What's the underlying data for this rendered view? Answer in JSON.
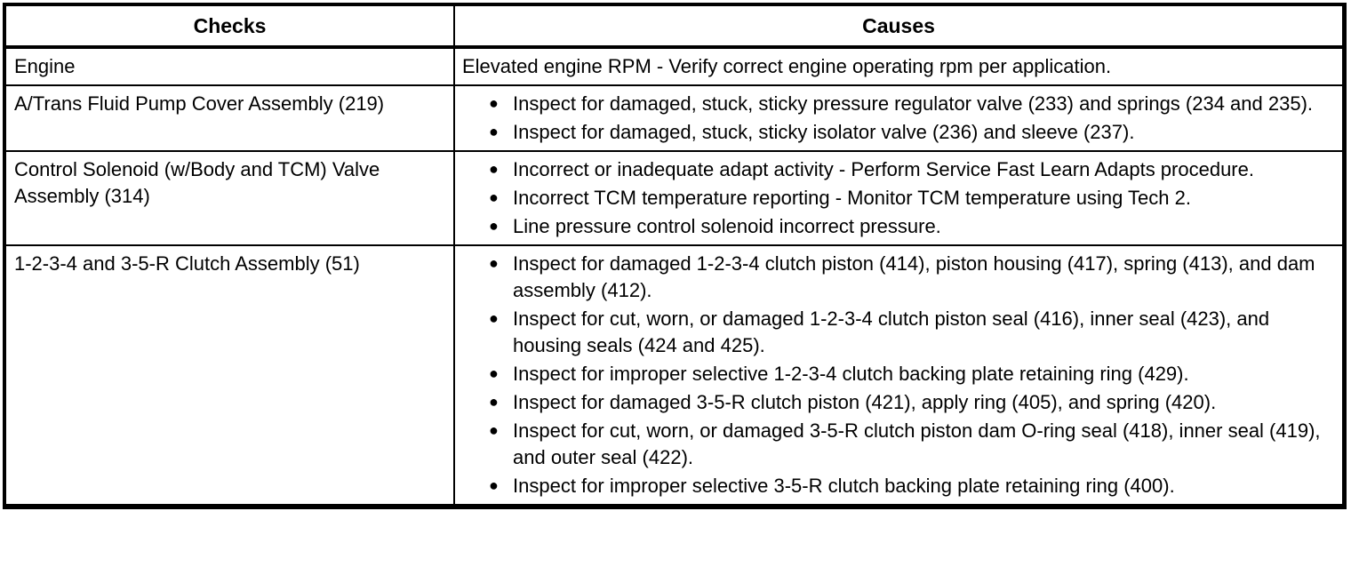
{
  "colors": {
    "border": "#000000",
    "text": "#000000",
    "background": "#ffffff"
  },
  "icons": {
    "bullet_glyph": "●"
  },
  "table": {
    "columns": [
      "Checks",
      "Causes"
    ],
    "rows": [
      {
        "check": "Engine",
        "bulleted": false,
        "causes": [
          "Elevated engine RPM - Verify correct engine operating rpm per application."
        ]
      },
      {
        "check": "A/Trans Fluid Pump Cover Assembly (219)",
        "bulleted": true,
        "causes": [
          "Inspect for damaged, stuck, sticky pressure regulator valve (233) and springs (234 and 235).",
          "Inspect for damaged, stuck, sticky isolator valve (236) and sleeve (237)."
        ]
      },
      {
        "check": "Control Solenoid (w/Body and TCM) Valve Assembly (314)",
        "bulleted": true,
        "causes": [
          "Incorrect or inadequate adapt activity - Perform Service Fast Learn Adapts procedure.",
          "Incorrect TCM temperature reporting - Monitor TCM temperature using Tech 2.",
          "Line pressure control solenoid incorrect pressure."
        ]
      },
      {
        "check": "1-2-3-4 and 3-5-R Clutch Assembly (51)",
        "bulleted": true,
        "causes": [
          "Inspect for damaged 1-2-3-4 clutch piston (414), piston housing (417), spring (413), and dam assembly (412).",
          "Inspect for cut, worn, or damaged 1-2-3-4 clutch piston seal (416), inner seal (423), and housing seals (424 and 425).",
          "Inspect for improper selective 1-2-3-4 clutch backing plate retaining ring (429).",
          "Inspect for damaged 3-5-R clutch piston (421), apply ring (405), and spring (420).",
          "Inspect for cut, worn, or damaged 3-5-R clutch piston dam O-ring seal (418), inner seal (419), and outer seal (422).",
          "Inspect for improper selective 3-5-R clutch backing plate retaining ring (400)."
        ]
      }
    ]
  }
}
